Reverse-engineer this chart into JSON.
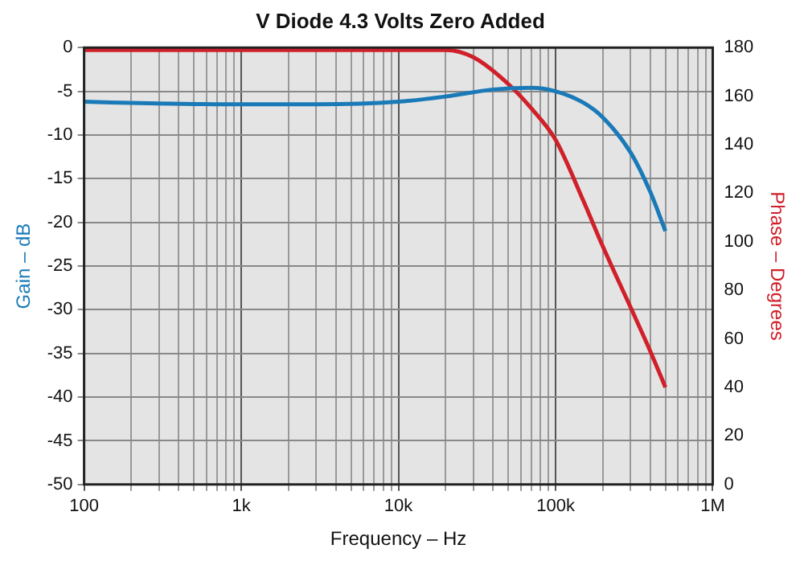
{
  "chart_data": {
    "type": "line",
    "title": "V Diode 4.3 Volts Zero Added",
    "xlabel": "Frequency – Hz",
    "ylabel": "Gain – dB",
    "y2label": "Phase – Degrees",
    "log": "x",
    "grid": true,
    "legend": false,
    "marker": "none",
    "line_style": "solid",
    "xlim": [
      100,
      1000000
    ],
    "xticks": [
      100,
      {
        "value": 200,
        "label": null
      },
      {
        "value": 300,
        "label": null
      },
      {
        "value": 400,
        "label": null
      },
      {
        "value": 500,
        "label": null
      },
      {
        "value": 600,
        "label": null
      },
      {
        "value": 700,
        "label": null
      },
      {
        "value": 800,
        "label": null
      },
      {
        "value": 900,
        "label": null
      },
      {
        "value": 1000,
        "label": "1k"
      },
      {
        "value": 2000,
        "label": null
      },
      {
        "value": 3000,
        "label": null
      },
      {
        "value": 4000,
        "label": null
      },
      {
        "value": 5000,
        "label": null
      },
      {
        "value": 6000,
        "label": null
      },
      {
        "value": 7000,
        "label": null
      },
      {
        "value": 8000,
        "label": null
      },
      {
        "value": 9000,
        "label": null
      },
      {
        "value": 10000,
        "label": "10k"
      },
      {
        "value": 20000,
        "label": null
      },
      {
        "value": 30000,
        "label": null
      },
      {
        "value": 40000,
        "label": null
      },
      {
        "value": 50000,
        "label": null
      },
      {
        "value": 60000,
        "label": null
      },
      {
        "value": 70000,
        "label": null
      },
      {
        "value": 80000,
        "label": null
      },
      {
        "value": 90000,
        "label": null
      },
      {
        "value": 100000,
        "label": "100k"
      },
      {
        "value": 200000,
        "label": null
      },
      {
        "value": 300000,
        "label": null
      },
      {
        "value": 400000,
        "label": null
      },
      {
        "value": 500000,
        "label": null
      },
      {
        "value": 600000,
        "label": null
      },
      {
        "value": 700000,
        "label": null
      },
      {
        "value": 800000,
        "label": null
      },
      {
        "value": 900000,
        "label": null
      },
      {
        "value": 1000000,
        "label": "1M"
      }
    ],
    "ylim": [
      -50,
      0
    ],
    "yticks": [
      -50,
      -45,
      -40,
      -35,
      -30,
      -25,
      -20,
      -15,
      -10,
      -5,
      0
    ],
    "y2lim": [
      0,
      180
    ],
    "y2ticks": [
      0,
      20,
      40,
      60,
      80,
      100,
      120,
      140,
      160,
      180
    ],
    "series": [
      {
        "color": "#1a7ab8",
        "x": [
          100,
          300,
          1000,
          3000,
          10000,
          20000,
          40000,
          70000,
          100000,
          150000,
          200000,
          300000,
          400000,
          500000
        ],
        "values": [
          -6.2,
          -6.4,
          -6.5,
          -6.5,
          -6.2,
          -5.6,
          -4.8,
          -4.6,
          -5,
          -6.3,
          -8,
          -12,
          -16.5,
          -21
        ]
      },
      {
        "color": "#d0202a",
        "axis": "y2",
        "x": [
          100,
          1000,
          10000,
          20000,
          30000,
          50000,
          70000,
          100000,
          150000,
          200000,
          300000,
          400000,
          500000
        ],
        "values": [
          179,
          179,
          179,
          179,
          176,
          165,
          155,
          142,
          117,
          98,
          73,
          55,
          40
        ]
      }
    ]
  }
}
